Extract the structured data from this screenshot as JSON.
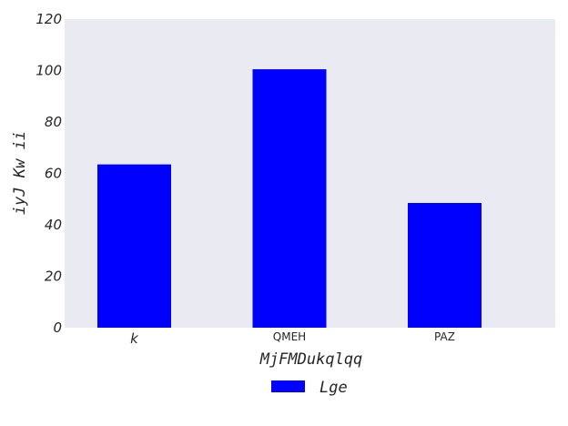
{
  "chart_data": {
    "type": "bar",
    "categories": [
      "k",
      "QMEH",
      "PAZ"
    ],
    "series": [
      {
        "name": "Lge",
        "values": [
          63.5,
          100.5,
          48.5
        ],
        "color": "#0000ff"
      }
    ],
    "xlabel": "MjFMDukqlqq",
    "ylabel": "iyJ Kw ii",
    "ylim": [
      0,
      120
    ],
    "yticks": [
      0,
      20,
      40,
      60,
      80,
      100,
      120
    ],
    "grid": false,
    "legend_position": "bottom-center",
    "background": "#eaeaf2"
  }
}
